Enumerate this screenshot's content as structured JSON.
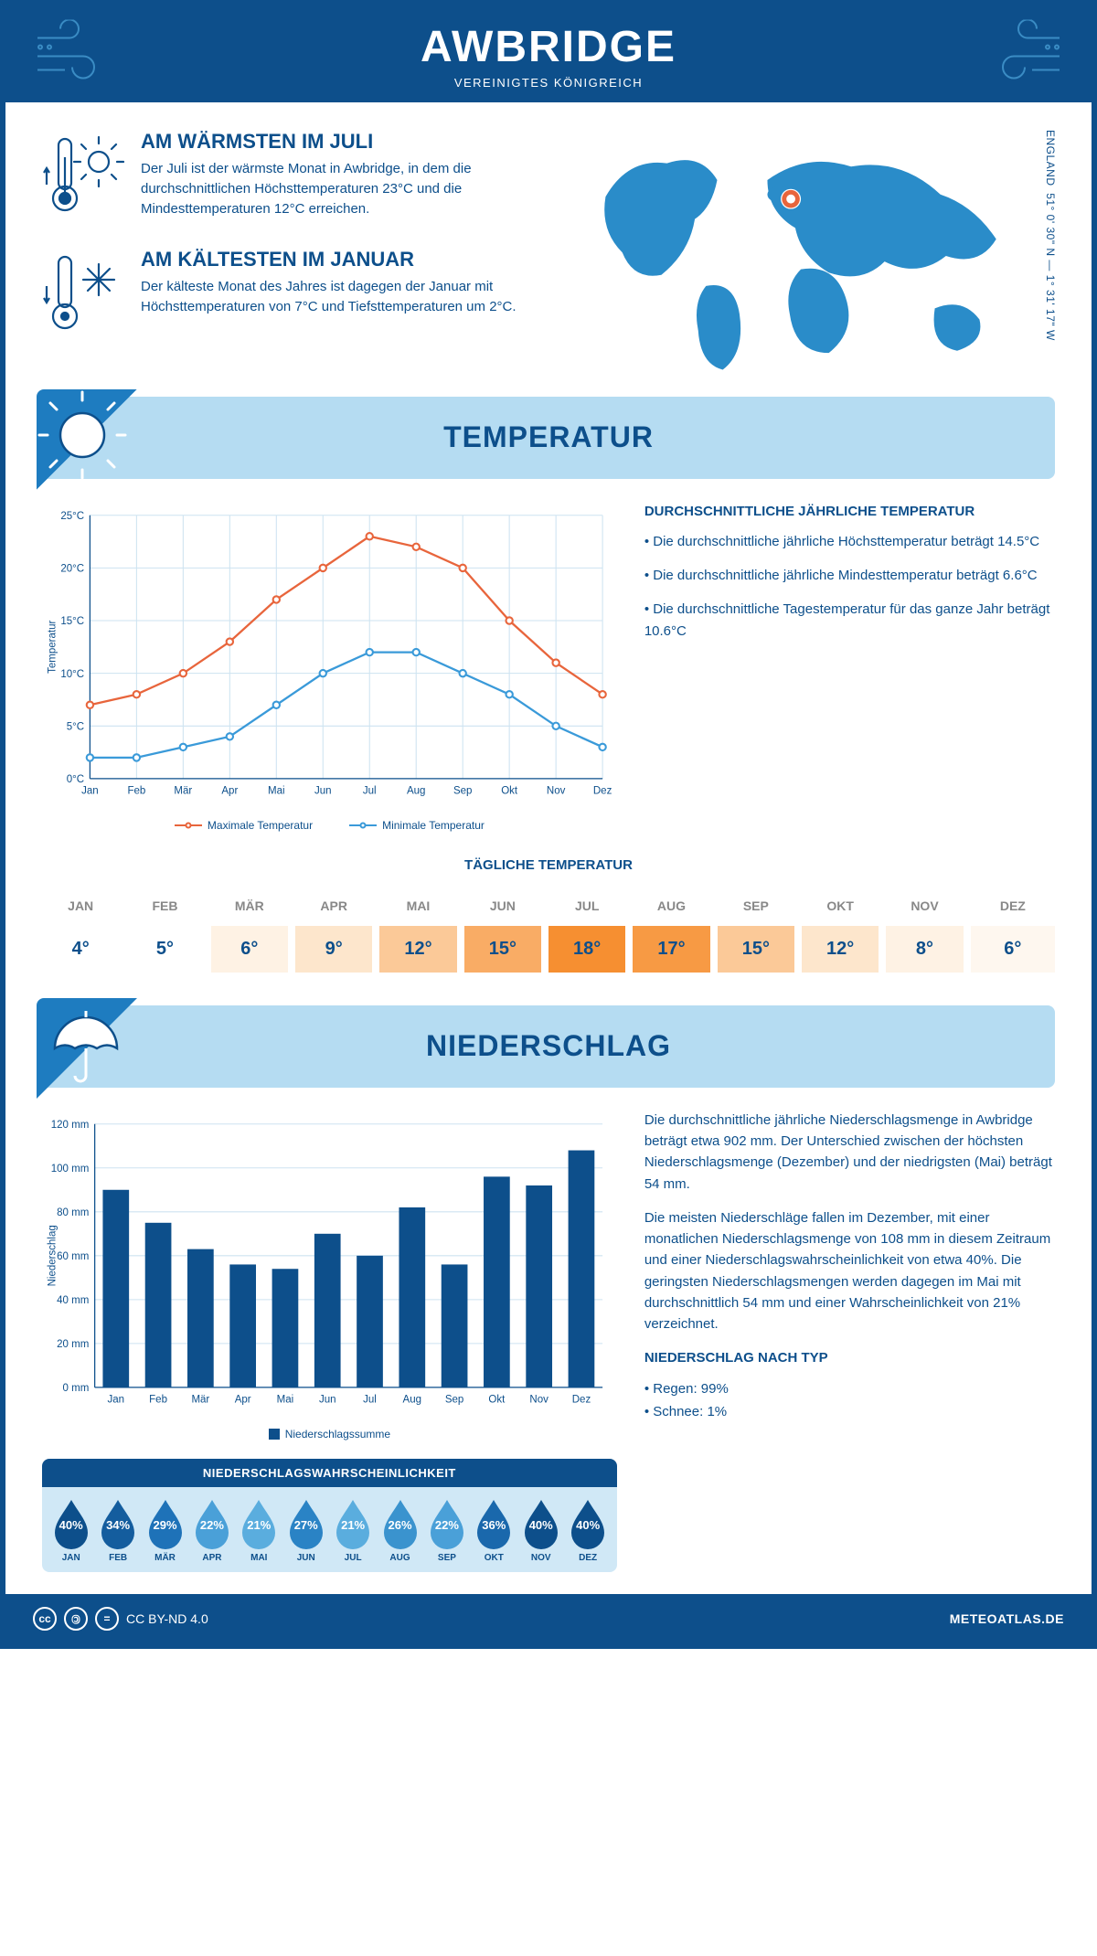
{
  "header": {
    "title": "AWBRIDGE",
    "subtitle": "VEREINIGTES KÖNIGREICH"
  },
  "coords": {
    "line1": "51° 0' 30\" N — 1° 31' 17\" W",
    "line2": "ENGLAND"
  },
  "warm": {
    "title": "AM WÄRMSTEN IM JULI",
    "body": "Der Juli ist der wärmste Monat in Awbridge, in dem die durchschnittlichen Höchsttemperaturen 23°C und die Mindesttemperaturen 12°C erreichen."
  },
  "cold": {
    "title": "AM KÄLTESTEN IM JANUAR",
    "body": "Der kälteste Monat des Jahres ist dagegen der Januar mit Höchsttemperaturen von 7°C und Tiefsttemperaturen um 2°C."
  },
  "tempSection": {
    "title": "TEMPERATUR"
  },
  "tempChart": {
    "ylabel": "Temperatur",
    "months": [
      "Jan",
      "Feb",
      "Mär",
      "Apr",
      "Mai",
      "Jun",
      "Jul",
      "Aug",
      "Sep",
      "Okt",
      "Nov",
      "Dez"
    ],
    "ylim": [
      0,
      25
    ],
    "ytick_step": 5,
    "series": {
      "max": {
        "label": "Maximale Temperatur",
        "color": "#e8653c",
        "values": [
          7,
          8,
          10,
          13,
          17,
          20,
          23,
          22,
          20,
          15,
          11,
          8
        ]
      },
      "min": {
        "label": "Minimale Temperatur",
        "color": "#3a9ad9",
        "values": [
          2,
          2,
          3,
          4,
          7,
          10,
          12,
          12,
          10,
          8,
          5,
          3
        ]
      }
    },
    "grid_color": "#cde3f1",
    "axis_color": "#0d4f8b",
    "label_fontsize": 11,
    "background": "#ffffff"
  },
  "tempText": {
    "heading": "DURCHSCHNITTLICHE JÄHRLICHE TEMPERATUR",
    "b1": "• Die durchschnittliche jährliche Höchsttemperatur beträgt 14.5°C",
    "b2": "• Die durchschnittliche jährliche Mindesttemperatur beträgt 6.6°C",
    "b3": "• Die durchschnittliche Tagestemperatur für das ganze Jahr beträgt 10.6°C"
  },
  "daily": {
    "title": "TÄGLICHE TEMPERATUR",
    "months": [
      "JAN",
      "FEB",
      "MÄR",
      "APR",
      "MAI",
      "JUN",
      "JUL",
      "AUG",
      "SEP",
      "OKT",
      "NOV",
      "DEZ"
    ],
    "values": [
      "4°",
      "5°",
      "6°",
      "9°",
      "12°",
      "15°",
      "18°",
      "17°",
      "15°",
      "12°",
      "8°",
      "6°"
    ],
    "colors": [
      "#ffffff",
      "#ffffff",
      "#fef2e4",
      "#fde6cc",
      "#fbc998",
      "#f9ac65",
      "#f68f31",
      "#f79a44",
      "#fbc998",
      "#fde6cc",
      "#fef2e4",
      "#fef7ef"
    ]
  },
  "precipSection": {
    "title": "NIEDERSCHLAG"
  },
  "precipChart": {
    "ylabel": "Niederschlag",
    "months": [
      "Jan",
      "Feb",
      "Mär",
      "Apr",
      "Mai",
      "Jun",
      "Jul",
      "Aug",
      "Sep",
      "Okt",
      "Nov",
      "Dez"
    ],
    "ylim": [
      0,
      120
    ],
    "ytick_step": 20,
    "unit": " mm",
    "values": [
      90,
      75,
      63,
      56,
      54,
      70,
      60,
      82,
      56,
      96,
      92,
      108
    ],
    "bar_color": "#0d4f8b",
    "legend": "Niederschlagssumme",
    "grid_color": "#cde3f1",
    "axis_color": "#0d4f8b"
  },
  "precipText": {
    "p1": "Die durchschnittliche jährliche Niederschlagsmenge in Awbridge beträgt etwa 902 mm. Der Unterschied zwischen der höchsten Niederschlagsmenge (Dezember) und der niedrigsten (Mai) beträgt 54 mm.",
    "p2": "Die meisten Niederschläge fallen im Dezember, mit einer monatlichen Niederschlagsmenge von 108 mm in diesem Zeitraum und einer Niederschlagswahrscheinlichkeit von etwa 40%. Die geringsten Niederschlagsmengen werden dagegen im Mai mit durchschnittlich 54 mm und einer Wahrscheinlichkeit von 21% verzeichnet.",
    "h2": "NIEDERSCHLAG NACH TYP",
    "b1": "• Regen: 99%",
    "b2": "• Schnee: 1%"
  },
  "prob": {
    "title": "NIEDERSCHLAGSWAHRSCHEINLICHKEIT",
    "months": [
      "JAN",
      "FEB",
      "MÄR",
      "APR",
      "MAI",
      "JUN",
      "JUL",
      "AUG",
      "SEP",
      "OKT",
      "NOV",
      "DEZ"
    ],
    "pct": [
      "40%",
      "34%",
      "29%",
      "22%",
      "21%",
      "27%",
      "21%",
      "26%",
      "22%",
      "36%",
      "40%",
      "40%"
    ],
    "colors": [
      "#0d4f8b",
      "#145d9e",
      "#1e72b8",
      "#4aa0d8",
      "#5aadde",
      "#2a83c5",
      "#5aadde",
      "#3a93ce",
      "#4aa0d8",
      "#1a68ac",
      "#0d4f8b",
      "#0d4f8b"
    ]
  },
  "footer": {
    "license": "CC BY-ND 4.0",
    "site": "METEOATLAS.DE"
  }
}
